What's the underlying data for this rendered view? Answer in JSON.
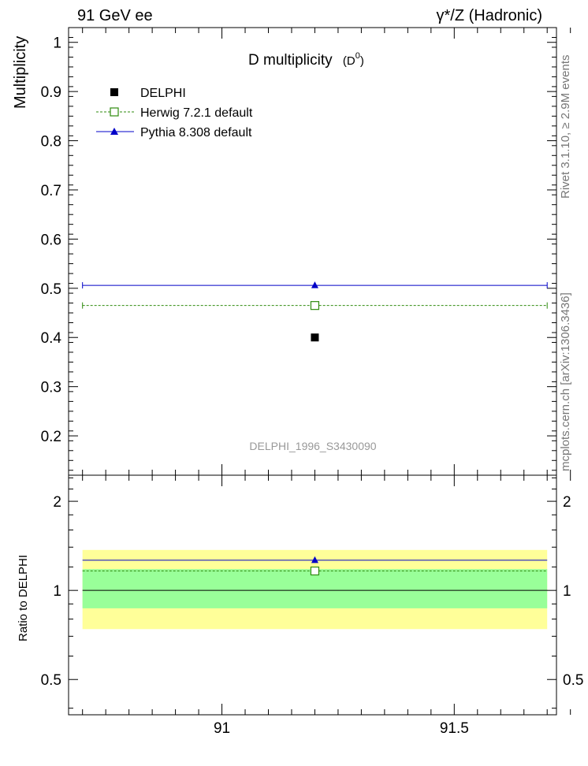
{
  "header": {
    "left": "91 GeV ee",
    "right": "γ*/Z (Hadronic)"
  },
  "side_text": {
    "rivet": "Rivet 3.1.10, ≥ 2.9M events",
    "mcplots": "mcplots.cern.ch [arXiv:1306.3436]"
  },
  "chart_data": [
    {
      "type": "scatter",
      "title": "D multiplicity",
      "title_sub": "(D",
      "title_sup": "0",
      "title_close": ")",
      "ylabel": "Multiplicity",
      "analysis_label": "DELPHI_1996_S3430090",
      "xlim": [
        90.67,
        91.72
      ],
      "ylim": [
        0.12,
        1.03
      ],
      "y_ticks": [
        0.2,
        0.3,
        0.4,
        0.5,
        0.6,
        0.7,
        0.8,
        0.9,
        1
      ],
      "y_tick_labels": [
        "0.2",
        "0.3",
        "0.4",
        "0.5",
        "0.6",
        "0.7",
        "0.8",
        "0.9",
        "1"
      ],
      "legend": [
        "DELPHI",
        "Herwig 7.2.1 default",
        "Pythia 8.308 default"
      ],
      "legend_position": "top-left",
      "series": [
        {
          "name": "DELPHI",
          "color": "#000000",
          "marker": "filled-square",
          "x": [
            91.2
          ],
          "y": [
            0.4
          ]
        },
        {
          "name": "Herwig 7.2.1 default",
          "color": "#2e8b0e",
          "marker": "open-square",
          "line": "dashed",
          "x": [
            91.2
          ],
          "y": [
            0.465
          ],
          "xrange": [
            90.67,
            91.72
          ]
        },
        {
          "name": "Pythia 8.308 default",
          "color": "#0000c8",
          "marker": "filled-triangle",
          "line": "solid",
          "x": [
            91.2
          ],
          "y": [
            0.506
          ],
          "xrange": [
            90.67,
            91.72
          ]
        }
      ]
    },
    {
      "type": "scatter",
      "ylabel": "Ratio to DELPHI",
      "xlim": [
        90.67,
        91.72
      ],
      "ylim": [
        0.38,
        2.45
      ],
      "y_scale": "log",
      "y_tick_labels": [
        "0.5",
        "1",
        "2"
      ],
      "y_ticks": [
        0.5,
        1,
        2
      ],
      "x_ticks": [
        91,
        91.5
      ],
      "x_tick_labels": [
        "91",
        "91.5"
      ],
      "bands": [
        {
          "label": "total uncertainty",
          "color": "#ffff99",
          "low": 0.74,
          "high": 1.37
        },
        {
          "label": "statistical uncertainty",
          "color": "#99ff99",
          "low": 0.87,
          "high": 1.18
        }
      ],
      "series": [
        {
          "name": "Herwig 7.2.1 default",
          "color": "#2e8b0e",
          "marker": "open-square",
          "line": "dashed",
          "x": [
            91.2
          ],
          "y": [
            1.163
          ]
        },
        {
          "name": "Pythia 8.308 default",
          "color": "#0000c8",
          "marker": "filled-triangle",
          "line": "solid",
          "x": [
            91.2
          ],
          "y": [
            1.265
          ]
        }
      ]
    }
  ]
}
